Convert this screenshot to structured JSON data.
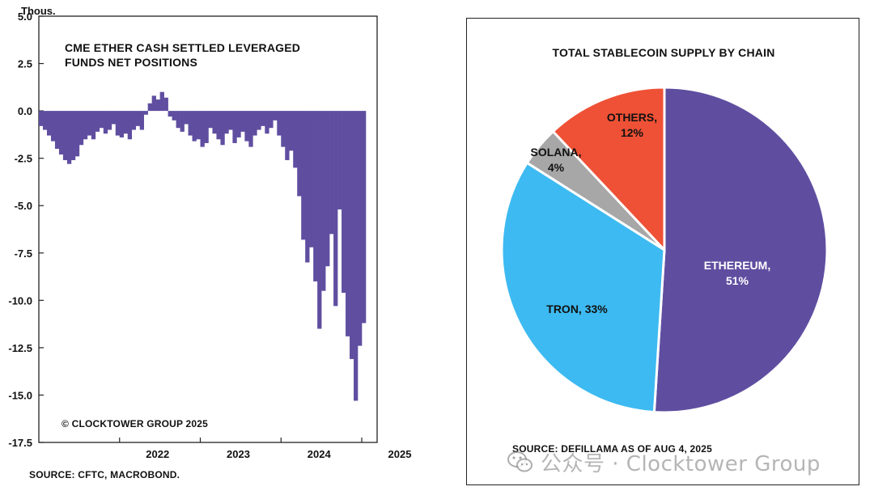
{
  "chart_data": [
    {
      "type": "bar",
      "title": "CME ETHER CASH SETTLED LEVERAGED FUNDS NET POSITIONS",
      "unit_label": "Thous.",
      "ylim": [
        -17.5,
        5.0
      ],
      "yticks": [
        "5.0",
        "2.5",
        "0.0",
        "-2.5",
        "-5.0",
        "-7.5",
        "-10.0",
        "-12.5",
        "-15.0",
        "-17.5"
      ],
      "ytick_values": [
        5.0,
        2.5,
        0.0,
        -2.5,
        -5.0,
        -7.5,
        -10.0,
        -12.5,
        -15.0,
        -17.5
      ],
      "xticks": [
        "2022",
        "2023",
        "2024",
        "2025"
      ],
      "xtick_positions": [
        2022.0,
        2023.0,
        2024.0,
        2025.0
      ],
      "xlim": [
        2021.0,
        2025.05
      ],
      "grid": false,
      "color": "#5f4ea0",
      "copyright": "© CLOCKTOWER GROUP 2025",
      "source": "SOURCE: CFTC, MACROBOND.",
      "series": [
        {
          "x": [
            2021.0,
            2021.05,
            2021.1,
            2021.15,
            2021.2,
            2021.25,
            2021.3,
            2021.35,
            2021.4,
            2021.45,
            2021.5,
            2021.55,
            2021.6,
            2021.65,
            2021.7,
            2021.75,
            2021.8,
            2021.85,
            2021.9,
            2021.95,
            2022.0,
            2022.05,
            2022.1,
            2022.15,
            2022.2,
            2022.25,
            2022.3,
            2022.35,
            2022.4,
            2022.45,
            2022.5,
            2022.55,
            2022.6,
            2022.65,
            2022.7,
            2022.75,
            2022.8,
            2022.85,
            2022.9,
            2022.95,
            2023.0,
            2023.05,
            2023.1,
            2023.15,
            2023.2,
            2023.25,
            2023.3,
            2023.35,
            2023.4,
            2023.45,
            2023.5,
            2023.55,
            2023.6,
            2023.65,
            2023.7,
            2023.75,
            2023.8,
            2023.85,
            2023.9,
            2023.95,
            2024.0,
            2024.05,
            2024.1,
            2024.15,
            2024.2,
            2024.25,
            2024.3,
            2024.35,
            2024.4,
            2024.45,
            2024.5,
            2024.55,
            2024.6,
            2024.65,
            2024.7,
            2024.75,
            2024.8,
            2024.85,
            2024.9,
            2024.95,
            2025.0
          ],
          "values": [
            -0.8,
            -1.0,
            -1.3,
            -1.6,
            -2.0,
            -2.3,
            -2.6,
            -2.8,
            -2.6,
            -2.4,
            -1.8,
            -1.5,
            -1.3,
            -1.5,
            -1.1,
            -0.9,
            -1.2,
            -1.0,
            -0.7,
            -1.3,
            -1.4,
            -1.2,
            -1.5,
            -1.0,
            -0.8,
            -1.0,
            -0.2,
            0.4,
            0.8,
            0.6,
            1.0,
            0.7,
            -0.3,
            -0.5,
            -0.9,
            -1.1,
            -0.7,
            -1.3,
            -1.6,
            -1.5,
            -1.9,
            -1.7,
            -0.9,
            -1.2,
            -1.5,
            -1.8,
            -1.2,
            -1.0,
            -1.7,
            -1.4,
            -1.1,
            -1.6,
            -1.9,
            -1.3,
            -1.0,
            -0.8,
            -1.2,
            -0.9,
            -0.5,
            -1.3,
            -1.9,
            -2.6,
            -2.1,
            -3.0,
            -4.5,
            -6.8,
            -8.0,
            -7.2,
            -9.0,
            -11.5,
            -9.5,
            -8.2,
            -6.5,
            -10.3,
            -5.2,
            -9.6,
            -11.9,
            -13.1,
            -15.3,
            -12.4,
            -11.2
          ]
        }
      ]
    },
    {
      "type": "pie",
      "title": "TOTAL STABLECOIN SUPPLY BY CHAIN",
      "source": "SOURCE: DEFILLAMA AS OF AUG 4, 2025",
      "slices": [
        {
          "name": "ETHEREUM",
          "value": 51,
          "color": "#5f4ea0",
          "label_line1": "ETHEREUM,",
          "label_line2": "51%"
        },
        {
          "name": "TRON",
          "value": 33,
          "color": "#3dbaf1",
          "label_line1": "TRON, 33%",
          "label_line2": ""
        },
        {
          "name": "SOLANA",
          "value": 4,
          "color": "#a7a7a7",
          "label_line1": "SOLANA,",
          "label_line2": "4%"
        },
        {
          "name": "OTHERS",
          "value": 12,
          "color": "#ef5136",
          "label_line1": "OTHERS,",
          "label_line2": "12%"
        }
      ]
    }
  ],
  "watermark": {
    "text": "公众号 · Clocktower Group",
    "icon": "wechat-icon"
  }
}
